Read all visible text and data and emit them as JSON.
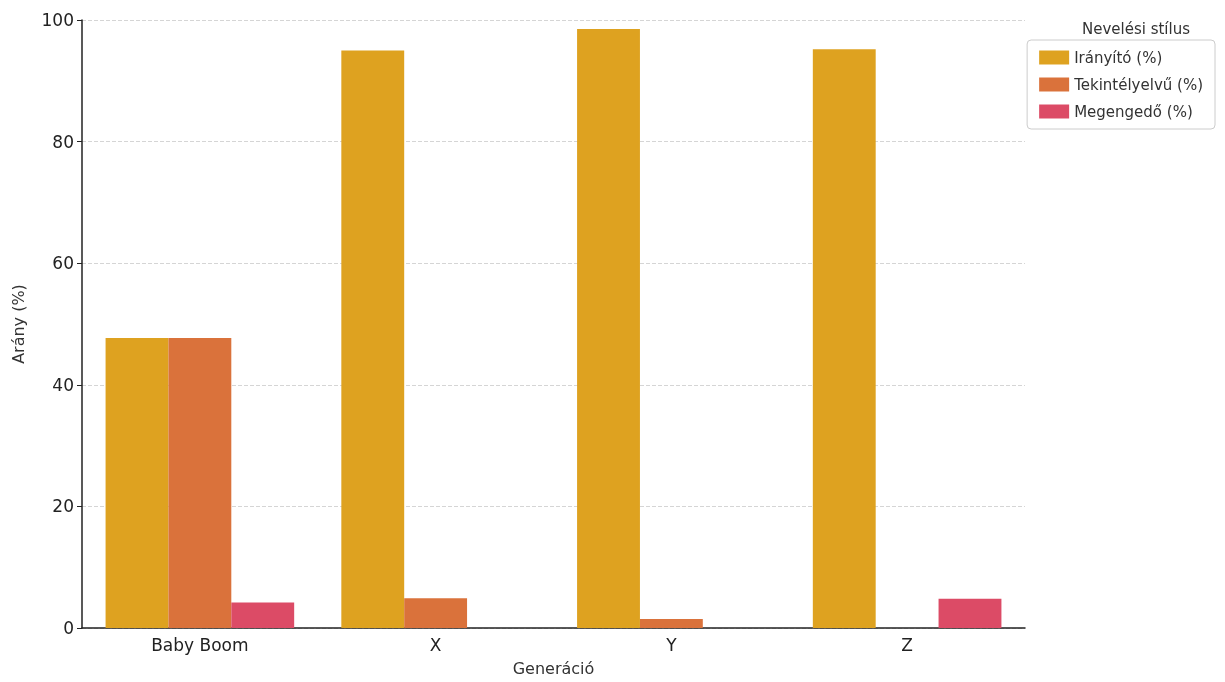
{
  "chart_data": {
    "type": "bar",
    "xlabel": "Generáció",
    "ylabel": "Arány (%)",
    "legend_title": "Nevelési stílus",
    "categories": [
      "Baby Boom",
      "X",
      "Y",
      "Z"
    ],
    "series": [
      {
        "name": "Irányító (%)",
        "color": "#dea220",
        "values": [
          47.7,
          95.0,
          98.5,
          95.2
        ]
      },
      {
        "name": "Tekintélyelvű (%)",
        "color": "#da723b",
        "values": [
          47.7,
          4.9,
          1.5,
          0
        ]
      },
      {
        "name": "Megengedő (%)",
        "color": "#dc4b66",
        "values": [
          4.2,
          0,
          0,
          4.8
        ]
      }
    ],
    "ylim": [
      0,
      100
    ],
    "yticks": [
      0,
      20,
      40,
      60,
      80,
      100
    ],
    "grid": "y",
    "legend": "top right"
  }
}
